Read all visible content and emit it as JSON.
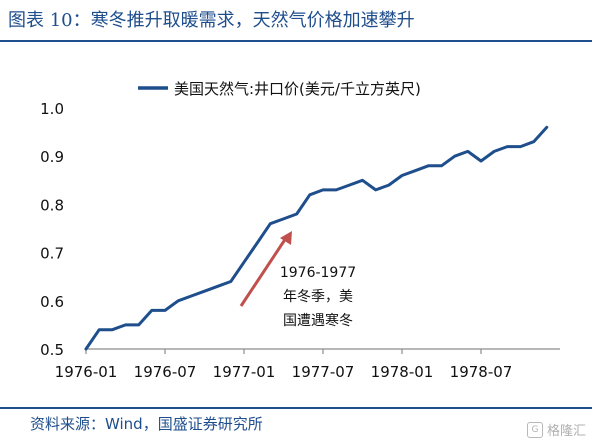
{
  "header": {
    "title": "图表 10：寒冬推升取暖需求，天然气价格加速攀升"
  },
  "footer": {
    "source": "资料来源：Wind，国盛证券研究所"
  },
  "watermark": {
    "text": "格隆汇",
    "icon": "logo-icon",
    "icon_glyph": "G"
  },
  "chart_data": {
    "type": "line",
    "legend": {
      "label": "美国天然气:井口价(美元/千立方英尺)",
      "position": "top-center"
    },
    "color": "#1f4e8c",
    "ylim": [
      0.5,
      1.0
    ],
    "yticks": [
      "0.5",
      "0.6",
      "0.7",
      "0.8",
      "0.9",
      "1.0"
    ],
    "xticks": [
      "1976-01",
      "1976-07",
      "1977-01",
      "1977-07",
      "1978-01",
      "1978-07"
    ],
    "x_start": "1976-01",
    "series": [
      {
        "name": "美国天然气:井口价(美元/千立方英尺)",
        "x": [
          "1976-01",
          "1976-02",
          "1976-03",
          "1976-04",
          "1976-05",
          "1976-06",
          "1976-07",
          "1976-08",
          "1976-09",
          "1976-10",
          "1976-11",
          "1976-12",
          "1977-01",
          "1977-02",
          "1977-03",
          "1977-04",
          "1977-05",
          "1977-06",
          "1977-07",
          "1977-08",
          "1977-09",
          "1977-10",
          "1977-11",
          "1977-12",
          "1978-01",
          "1978-02",
          "1978-03",
          "1978-04",
          "1978-05",
          "1978-06",
          "1978-07",
          "1978-08",
          "1978-09",
          "1978-10",
          "1978-11",
          "1978-12"
        ],
        "values": [
          0.5,
          0.54,
          0.54,
          0.55,
          0.55,
          0.58,
          0.58,
          0.6,
          0.61,
          0.62,
          0.63,
          0.64,
          0.68,
          0.72,
          0.76,
          0.77,
          0.78,
          0.82,
          0.83,
          0.83,
          0.84,
          0.85,
          0.83,
          0.84,
          0.86,
          0.87,
          0.88,
          0.88,
          0.9,
          0.91,
          0.89,
          0.91,
          0.92,
          0.92,
          0.93,
          0.96
        ]
      }
    ],
    "annotation": {
      "lines": [
        "1976-1977",
        "年冬季，美",
        "国遭遇寒冬"
      ],
      "arrow_color": "#c0504d"
    }
  }
}
